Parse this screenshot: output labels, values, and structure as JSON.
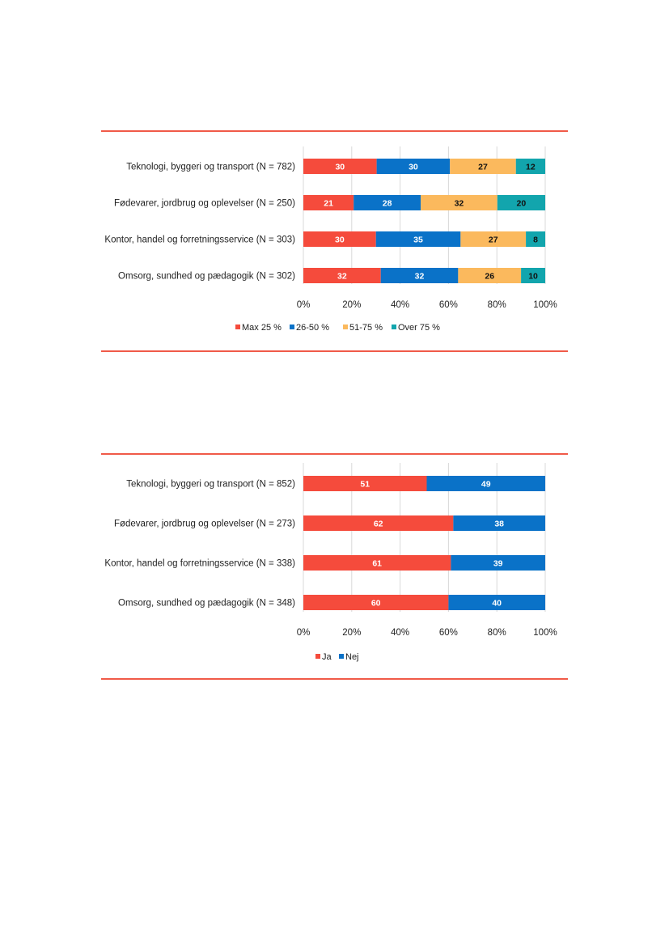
{
  "colors": {
    "accent_rule": "#f05a48",
    "max25": "#f54b3c",
    "p26_50": "#0a72c8",
    "p51_75": "#fbb95d",
    "over75": "#12a5ad",
    "ja": "#f54b3c",
    "nej": "#0a72c8"
  },
  "chart_data": [
    {
      "type": "bar",
      "orientation": "horizontal",
      "stacked": true,
      "categories": [
        "Teknologi, byggeri og transport (N = 782)",
        "Fødevarer, jordbrug og oplevelser (N = 250)",
        "Kontor, handel og forretningsservice (N = 303)",
        "Omsorg, sundhed og pædagogik (N = 302)"
      ],
      "series": [
        {
          "name": "Max 25 %",
          "color": "#f54b3c",
          "label_color": "#ffffff",
          "values": [
            30,
            21,
            30,
            32
          ]
        },
        {
          "name": "26-50 %",
          "color": "#0a72c8",
          "label_color": "#ffffff",
          "values": [
            30,
            28,
            35,
            32
          ]
        },
        {
          "name": "51-75 %",
          "color": "#fbb95d",
          "label_color": "#111111",
          "values": [
            27,
            32,
            27,
            26
          ]
        },
        {
          "name": "Over 75 %",
          "color": "#12a5ad",
          "label_color": "#111111",
          "values": [
            12,
            20,
            8,
            10
          ]
        }
      ],
      "xlim": [
        0,
        100
      ],
      "x_ticks": [
        "0%",
        "20%",
        "40%",
        "60%",
        "80%",
        "100%"
      ],
      "grid": true,
      "legend_position": "bottom"
    },
    {
      "type": "bar",
      "orientation": "horizontal",
      "stacked": true,
      "categories": [
        "Teknologi, byggeri og transport (N = 852)",
        "Fødevarer, jordbrug og oplevelser (N = 273)",
        "Kontor, handel og forretningsservice (N = 338)",
        "Omsorg, sundhed og pædagogik (N = 348)"
      ],
      "series": [
        {
          "name": "Ja",
          "color": "#f54b3c",
          "label_color": "#ffffff",
          "values": [
            51,
            62,
            61,
            60
          ]
        },
        {
          "name": "Nej",
          "color": "#0a72c8",
          "label_color": "#ffffff",
          "values": [
            49,
            38,
            39,
            40
          ]
        }
      ],
      "xlim": [
        0,
        100
      ],
      "x_ticks": [
        "0%",
        "20%",
        "40%",
        "60%",
        "80%",
        "100%"
      ],
      "grid": true,
      "legend_position": "bottom"
    }
  ]
}
